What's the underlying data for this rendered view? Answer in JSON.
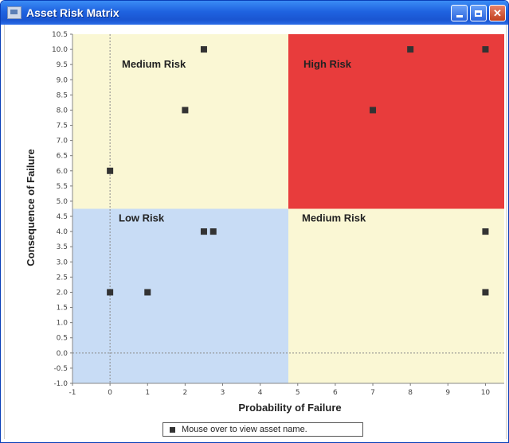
{
  "window": {
    "title": "Asset Risk Matrix"
  },
  "colors": {
    "low": "#c8dcf5",
    "medium": "#faf7d4",
    "high": "#e83c3c",
    "point": "#333333"
  },
  "chart_data": {
    "type": "scatter",
    "xlabel": "Probability of Failure",
    "ylabel": "Consequence of Failure",
    "xlim": [
      -1,
      10.5
    ],
    "ylim": [
      -1.0,
      10.5
    ],
    "xticks": [
      -1,
      0,
      1,
      2,
      3,
      4,
      5,
      6,
      7,
      8,
      9,
      10
    ],
    "yticks": [
      -1.0,
      -0.5,
      0.0,
      0.5,
      1.0,
      1.5,
      2.0,
      2.5,
      3.0,
      3.5,
      4.0,
      4.5,
      5.0,
      5.5,
      6.0,
      6.5,
      7.0,
      7.5,
      8.0,
      8.5,
      9.0,
      9.5,
      10.0,
      10.5
    ],
    "threshold_x": 4.75,
    "threshold_y": 4.75,
    "regions": [
      {
        "label": "Medium Risk",
        "quadrant": "top-left"
      },
      {
        "label": "High Risk",
        "quadrant": "top-right"
      },
      {
        "label": "Low Risk",
        "quadrant": "bottom-left"
      },
      {
        "label": "Medium Risk",
        "quadrant": "bottom-right"
      }
    ],
    "points": [
      {
        "x": 2.5,
        "y": 10.0
      },
      {
        "x": 8.0,
        "y": 10.0
      },
      {
        "x": 10.0,
        "y": 10.0
      },
      {
        "x": 2.0,
        "y": 8.0
      },
      {
        "x": 7.0,
        "y": 8.0
      },
      {
        "x": 0.0,
        "y": 6.0
      },
      {
        "x": 2.5,
        "y": 4.0
      },
      {
        "x": 2.75,
        "y": 4.0
      },
      {
        "x": 10.0,
        "y": 4.0
      },
      {
        "x": 0.0,
        "y": 2.0
      },
      {
        "x": 1.0,
        "y": 2.0
      },
      {
        "x": 10.0,
        "y": 2.0
      }
    ],
    "legend": "Mouse over to view asset name."
  }
}
